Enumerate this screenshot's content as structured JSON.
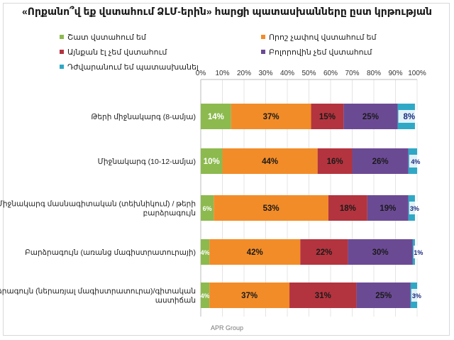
{
  "chart_data": {
    "type": "bar",
    "stacked": true,
    "orientation": "horizontal",
    "title": "«Որքանո՞վ եք վստահում ՁԼՄ-երին» հարցի պատասխանները ըստ կրթության",
    "footer": "APR Group",
    "xlim": [
      0,
      100
    ],
    "x_ticks": [
      "0%",
      "10%",
      "20%",
      "30%",
      "40%",
      "50%",
      "60%",
      "70%",
      "80%",
      "90%",
      "100%"
    ],
    "legend_position": "top",
    "categories": [
      [
        "Թերի միջնակարգ (8-ամյա)"
      ],
      [
        "Միջնակարգ (10-12-ամյա)"
      ],
      [
        "Միջնակարգ մասնագիտական (տեխնիկում) / թերի",
        "բարձրագույն"
      ],
      [
        "Բարձրագույն (առանց մագիստրատուրայի)"
      ],
      [
        "Բարձրագույն (ներառյալ մագիստրատուրա)/գիտական",
        "աստիճան"
      ]
    ],
    "series": [
      {
        "name": "Շատ վստահում եմ",
        "color": "#8cba4e",
        "values": [
          14,
          10,
          6,
          4,
          4
        ],
        "labels": [
          "14%",
          "10%",
          "6%",
          "4%",
          "4%"
        ]
      },
      {
        "name": "Որոշ չափով վստահում եմ",
        "color": "#f28c28",
        "values": [
          37,
          44,
          53,
          42,
          37
        ],
        "labels": [
          "37%",
          "44%",
          "53%",
          "42%",
          "37%"
        ]
      },
      {
        "name": "Այնքան էլ չեմ վստահում",
        "color": "#b3343e",
        "values": [
          15,
          16,
          18,
          22,
          31
        ],
        "labels": [
          "15%",
          "16%",
          "18%",
          "22%",
          "31%"
        ]
      },
      {
        "name": "Բոլորովին չեմ վստահում",
        "color": "#6b4a94",
        "values": [
          25,
          26,
          19,
          30,
          25
        ],
        "labels": [
          "25%",
          "26%",
          "19%",
          "30%",
          "25%"
        ]
      },
      {
        "name": "Դժվարանում եմ պատասխանել",
        "color": "#2fa8c6",
        "values": [
          8,
          4,
          3,
          1,
          3
        ],
        "labels": [
          "8%",
          "4%",
          "3%",
          "1%",
          "3%"
        ]
      }
    ]
  }
}
